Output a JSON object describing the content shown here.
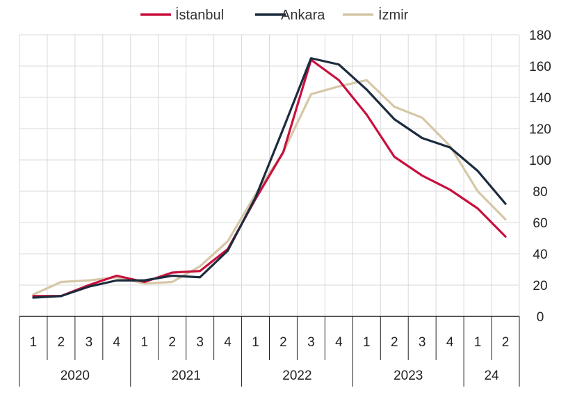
{
  "chart_data": {
    "type": "line",
    "title": "",
    "xlabel": "",
    "ylabel": "",
    "ylim": [
      0,
      180
    ],
    "yticks": [
      0,
      20,
      40,
      60,
      80,
      100,
      120,
      140,
      160,
      180
    ],
    "y_axis_side": "right",
    "grid": true,
    "legend_position": "top-center",
    "categories": [
      "1",
      "2",
      "3",
      "4",
      "1",
      "2",
      "3",
      "4",
      "1",
      "2",
      "3",
      "4",
      "1",
      "2",
      "3",
      "4",
      "1",
      "2"
    ],
    "year_groups": [
      {
        "label": "2020",
        "span": 4
      },
      {
        "label": "2021",
        "span": 4
      },
      {
        "label": "2022",
        "span": 4
      },
      {
        "label": "2023",
        "span": 4
      },
      {
        "label": "24",
        "span": 2
      }
    ],
    "series": [
      {
        "name": "İstanbul",
        "color": "#c8103e",
        "values": [
          13,
          13,
          20,
          26,
          22,
          28,
          29,
          43,
          75,
          105,
          164,
          151,
          129,
          102,
          90,
          81,
          69,
          51
        ]
      },
      {
        "name": "Ankara",
        "color": "#1c2b3e",
        "values": [
          12,
          13,
          19,
          23,
          23,
          26,
          25,
          42,
          76,
          120,
          165,
          161,
          145,
          126,
          114,
          108,
          93,
          72
        ]
      },
      {
        "name": "İzmir",
        "color": "#d6c7a8",
        "values": [
          14,
          22,
          23,
          25,
          21,
          22,
          32,
          48,
          78,
          105,
          142,
          147,
          151,
          134,
          127,
          109,
          80,
          62
        ]
      }
    ]
  }
}
